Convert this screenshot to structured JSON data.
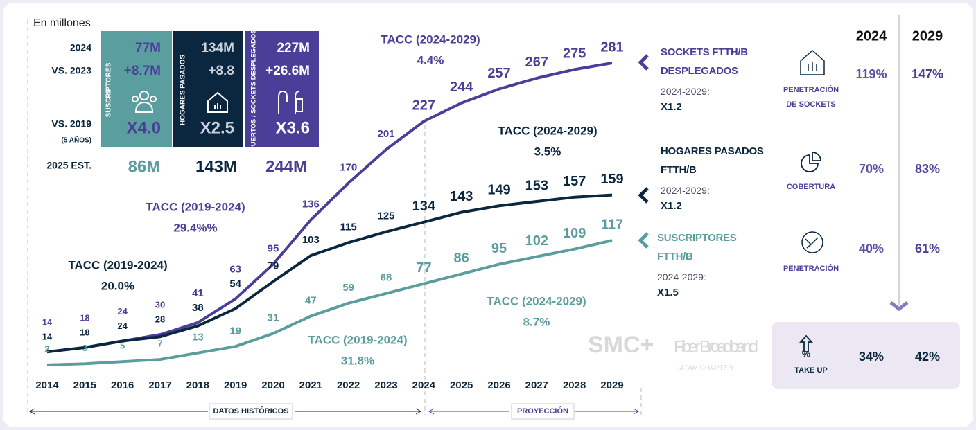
{
  "chart_data": {
    "type": "line",
    "categories": [
      "2014",
      "2015",
      "2016",
      "2017",
      "2018",
      "2019",
      "2020",
      "2021",
      "2022",
      "2023",
      "2024",
      "2025",
      "2026",
      "2027",
      "2028",
      "2029"
    ],
    "series": [
      {
        "name": "SOCKETS FTTH/B DESPLEGADOS",
        "color": "#4a3f98",
        "note": "2024-2029:",
        "multiplier": "X1.2",
        "values": [
          14,
          18,
          24,
          30,
          41,
          63,
          95,
          136,
          170,
          201,
          227,
          244,
          257,
          267,
          275,
          281
        ]
      },
      {
        "name": "HOGARES PASADOS FTTH/B",
        "color": "#0b2740",
        "note": "2024-2029:",
        "multiplier": "X1.2",
        "values": [
          14,
          18,
          24,
          28,
          38,
          54,
          79,
          103,
          115,
          125,
          134,
          143,
          149,
          153,
          157,
          159
        ]
      },
      {
        "name": "SUSCRIPTORES FTTH/B",
        "color": "#5b9c9e",
        "note": "2024-2029:",
        "multiplier": "X1.5",
        "values": [
          2,
          3,
          5,
          7,
          13,
          19,
          31,
          47,
          59,
          68,
          77,
          86,
          95,
          102,
          109,
          117
        ]
      }
    ],
    "annotations": [
      {
        "label": "TACC (2024-2029)",
        "value": "4.4%",
        "color": "#4a3f98"
      },
      {
        "label": "TACC (2024-2029)",
        "value": "3.5%",
        "color": "#0b2740"
      },
      {
        "label": "TACC (2019-2024)",
        "value": "29.4%%",
        "color": "#4a3f98"
      },
      {
        "label": "TACC (2019-2024)",
        "value": "20.0%",
        "color": "#0b2740"
      },
      {
        "label": "TACC (2024-2029)",
        "value": "8.7%",
        "color": "#5b9c9e"
      },
      {
        "label": "TACC (2019-2024)",
        "value": "31.8%",
        "color": "#5b9c9e"
      }
    ],
    "periods": [
      "DATOS HISTÓRICOS",
      "PROYECCIÓN"
    ]
  },
  "stats": {
    "unit": "En millones",
    "row_labels": [
      "2024",
      "VS. 2023",
      "VS. 2019",
      "(5 AÑOS)",
      "2025 EST."
    ],
    "columns": [
      {
        "name": "SUSCRIPTORES",
        "values": [
          "77M",
          "+8.7M",
          "X4.0"
        ],
        "estimate": "86M"
      },
      {
        "name": "HOGARES PASADOS",
        "values": [
          "134M",
          "+8.8",
          "X2.5"
        ],
        "estimate": "143M"
      },
      {
        "name": "PUERTOS / SOCKETS DESPLEGADOS",
        "values": [
          "227M",
          "+26.6M",
          "X3.6"
        ],
        "estimate": "244M"
      }
    ]
  },
  "table": {
    "columns": [
      "2024",
      "2029"
    ],
    "rows": [
      {
        "label": [
          "PENETRACIÓN",
          "DE SOCKETS"
        ],
        "values": [
          "119%",
          "147%"
        ]
      },
      {
        "label": [
          "COBERTURA"
        ],
        "values": [
          "70%",
          "83%"
        ]
      },
      {
        "label": [
          "PENETRACIÓN"
        ],
        "values": [
          "40%",
          "61%"
        ]
      },
      {
        "label": [
          "TAKE UP"
        ],
        "values": [
          "34%",
          "42%"
        ]
      }
    ]
  },
  "logos": {
    "smc": "SMC+",
    "fiber": "Fiber Broadband",
    "chapter": "LATAM CHAPTER"
  }
}
